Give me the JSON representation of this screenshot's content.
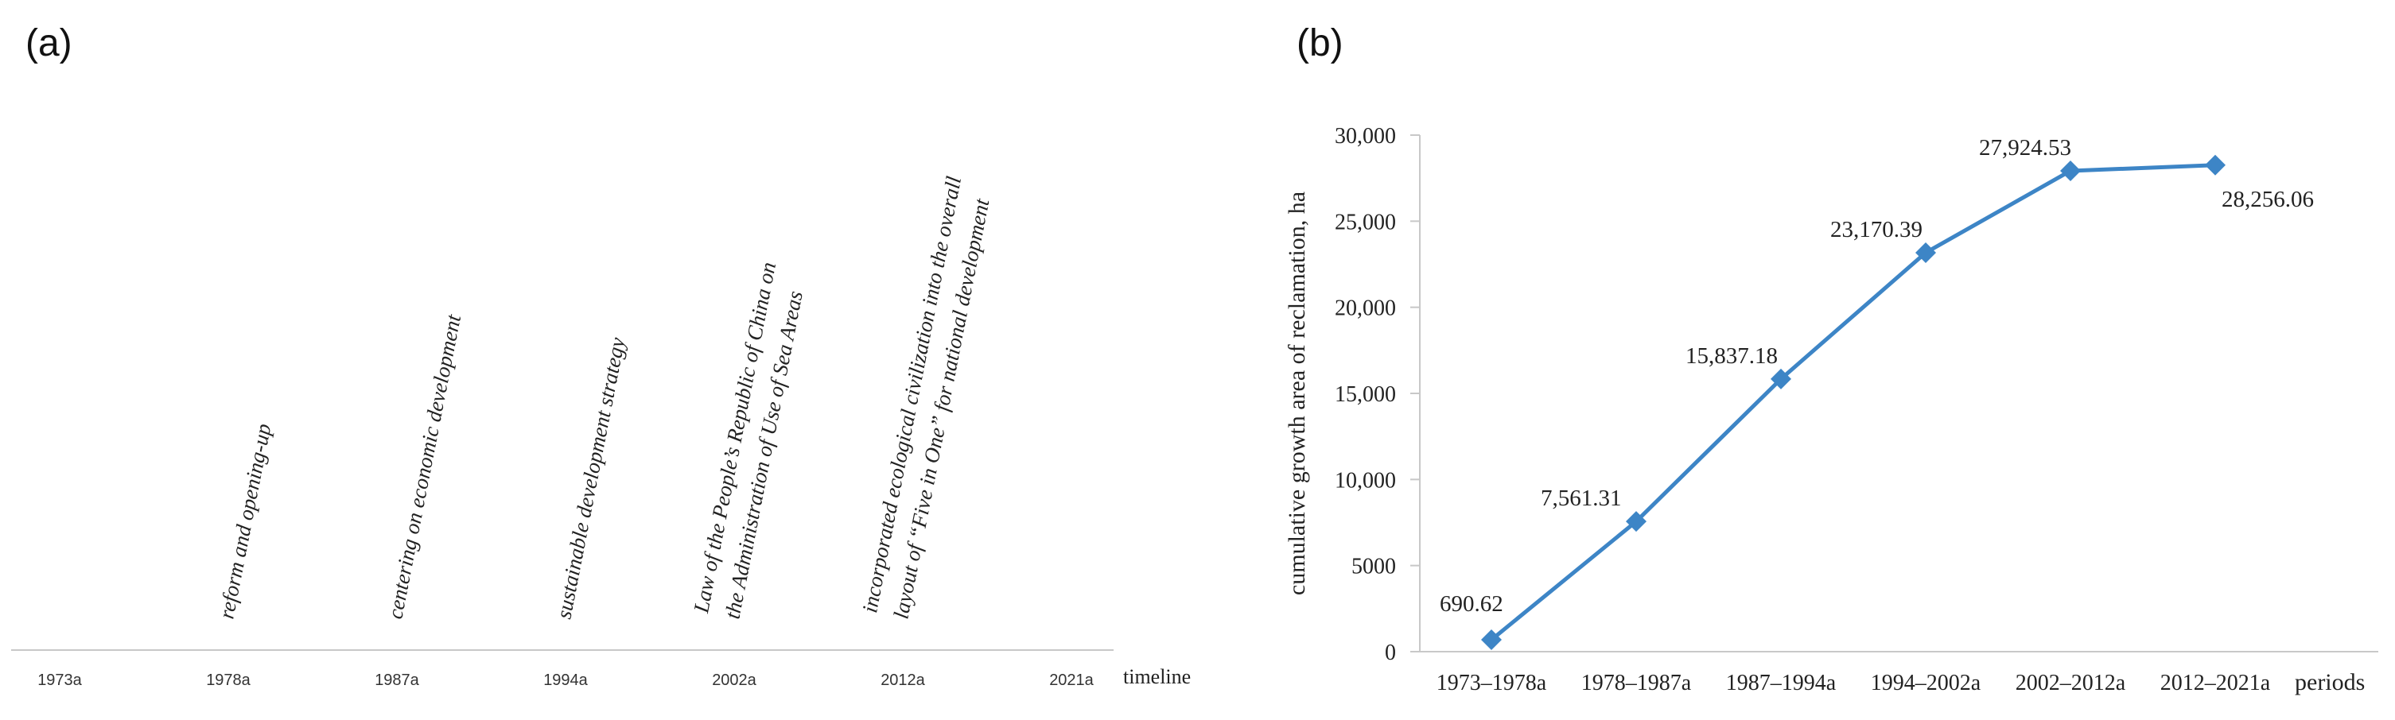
{
  "panel_a": {
    "label": "(a)",
    "axis_label": "timeline",
    "ticks": [
      "1973a",
      "1978a",
      "1987a",
      "1994a",
      "2002a",
      "2012a",
      "2021a"
    ],
    "events": [
      {
        "year": "1978a",
        "lines": [
          "reform and opening-up"
        ]
      },
      {
        "year": "1987a",
        "lines": [
          "centering on economic development"
        ]
      },
      {
        "year": "1994a",
        "lines": [
          "sustainable development strategy"
        ]
      },
      {
        "year": "2002a",
        "lines": [
          "Law of the People’s Republic of China on",
          "the Administration of Use of Sea Areas"
        ]
      },
      {
        "year": "2012a",
        "lines": [
          "incorporated ecological civilization into the overall",
          "layout of “Five in One” for national development"
        ]
      }
    ]
  },
  "chart_data": {
    "type": "line",
    "panel_label": "(b)",
    "categories": [
      "1973–1978a",
      "1978–1987a",
      "1987–1994a",
      "1994–2002a",
      "2002–2012a",
      "2012–2021a"
    ],
    "values": [
      690.62,
      7561.31,
      15837.18,
      23170.39,
      27924.53,
      28256.06
    ],
    "data_labels": [
      "690.62",
      "7,561.31",
      "15,837.18",
      "23,170.39",
      "27,924.53",
      "28,256.06"
    ],
    "ylabel": "cumulative growth area of reclamation, ha",
    "xlabel": "periods",
    "ylim": [
      0,
      30000
    ],
    "y_ticks": [
      0,
      5000,
      10000,
      15000,
      20000,
      25000,
      30000
    ],
    "y_tick_labels": [
      "0",
      "5000",
      "10,000",
      "15,000",
      "20,000",
      "25,000",
      "30,000"
    ],
    "series_color": "#3d85c6",
    "marker": "diamond",
    "grid": false
  }
}
